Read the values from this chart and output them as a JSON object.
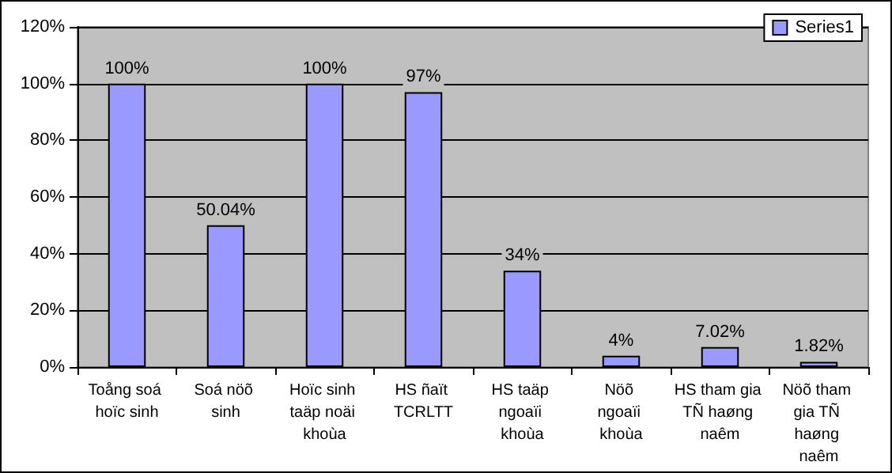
{
  "chart_data": {
    "type": "bar",
    "categories": [
      "Toång soá hoïc sinh",
      "Soá nöõ sinh",
      "Hoïc sinh taäp noäi khoùa",
      "HS ñaït TCRLTT",
      "HS taäp ngoaïi khoùa",
      "Nöõ ngoaïi khoùa",
      "HS tham gia TÑ haøng naêm",
      "Nöõ tham gia TÑ haøng naêm"
    ],
    "series": [
      {
        "name": "Series1",
        "color": "#9999ff",
        "values": [
          100,
          50.04,
          100,
          97,
          34,
          4,
          7.02,
          1.82
        ],
        "value_labels": [
          "100%",
          "50.04%",
          "100%",
          "97%",
          "34%",
          "4%",
          "7.02%",
          "1.82%"
        ]
      }
    ],
    "ylim": [
      0,
      120
    ],
    "yticks": [
      {
        "value": 0,
        "label": "0%"
      },
      {
        "value": 20,
        "label": "20%"
      },
      {
        "value": 40,
        "label": "40%"
      },
      {
        "value": 60,
        "label": "60%"
      },
      {
        "value": 80,
        "label": "80%"
      },
      {
        "value": 100,
        "label": "100%"
      },
      {
        "value": 120,
        "label": "120%"
      }
    ],
    "grid": "y",
    "legend": "top right"
  }
}
